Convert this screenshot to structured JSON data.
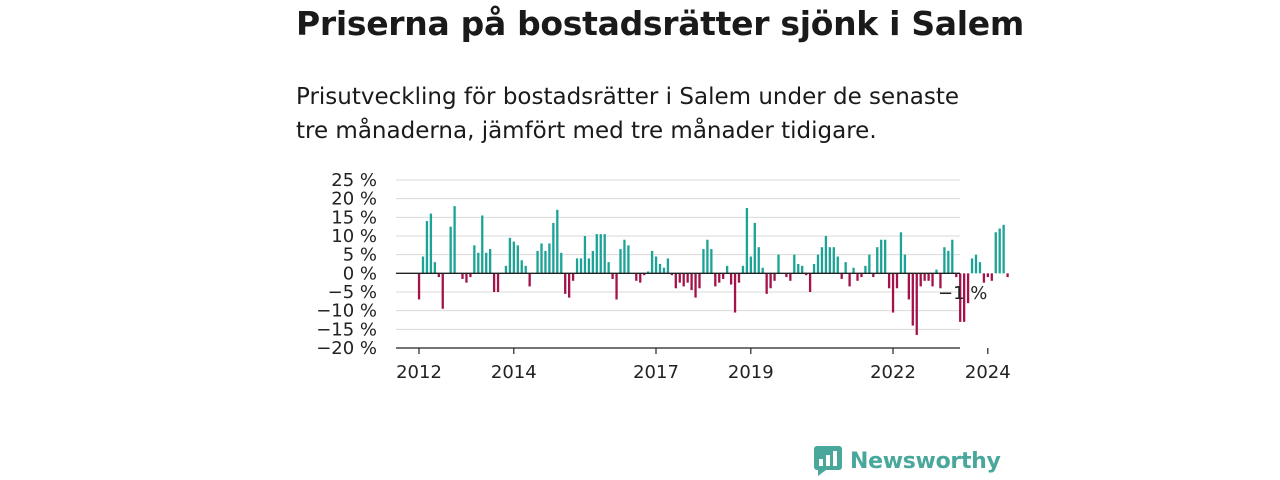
{
  "title": "Priserna på bostadsrätter sjönk i Salem",
  "subtitle": "Prisutveckling för bostadsrätter i Salem under de senaste tre månaderna, jämfört med tre månader tidigare.",
  "brand": "Newsworthy",
  "colors": {
    "positive": "#1aa396",
    "negative": "#a3124a",
    "brand": "#4aa79c"
  },
  "chart_data": {
    "type": "bar",
    "ylim": [
      -20,
      25
    ],
    "yticks": [
      25,
      20,
      15,
      10,
      5,
      0,
      -5,
      -10,
      -15,
      -20
    ],
    "ytick_labels": [
      "25 %",
      "20 %",
      "15 %",
      "10 %",
      "5 %",
      "0 %",
      "−5 %",
      "−10 %",
      "−15 %",
      "−20 %"
    ],
    "xtick_labels": [
      "2012",
      "2014",
      "2017",
      "2019",
      "2022",
      "2024"
    ],
    "xtick_months": [
      0,
      24,
      60,
      84,
      120,
      144
    ],
    "annotation": "−1 %",
    "x_start": "2012-01",
    "values": [
      -7,
      4.5,
      14,
      16,
      3,
      -1,
      -9.5,
      0,
      12.5,
      18,
      0,
      -1.5,
      -2.5,
      -1,
      7.5,
      5.5,
      15.5,
      5.5,
      6.5,
      -5,
      -5,
      0,
      2,
      9.5,
      8.5,
      7.5,
      3.5,
      2,
      -3.5,
      0,
      6,
      8,
      6,
      8,
      13.5,
      17,
      5.5,
      -5.5,
      -6.5,
      -2,
      4,
      4,
      10,
      4,
      6,
      10.5,
      10.5,
      10.5,
      3,
      -1.5,
      -7,
      6.5,
      9,
      7.5,
      0,
      -2,
      -2.5,
      -0.5,
      0.5,
      6,
      4.5,
      2.5,
      1.5,
      4,
      -0.5,
      -4,
      -2.5,
      -3.5,
      -2.5,
      -4.5,
      -6.5,
      -4,
      6.5,
      9,
      6.5,
      -3.5,
      -2.5,
      -1.5,
      2,
      -3,
      -10.5,
      -2.5,
      2,
      17.5,
      4.5,
      13.5,
      7,
      1.5,
      -5.5,
      -4,
      -2,
      5,
      0,
      -1,
      -2,
      5,
      2.5,
      2,
      -0.5,
      -5,
      2.5,
      5,
      7,
      10,
      7,
      7,
      4.5,
      -1.5,
      3,
      -3.5,
      1.5,
      -2,
      -1,
      2,
      5,
      -1,
      7,
      9,
      9,
      -4,
      -10.5,
      -4,
      11,
      5,
      -7,
      -14,
      -16.5,
      -3.5,
      -2,
      -2,
      -3.5,
      1,
      -4,
      7,
      6,
      9,
      -1,
      -13,
      -13,
      -8,
      4,
      5,
      3,
      -2.5,
      -1,
      -2,
      11,
      12,
      13,
      -1
    ]
  }
}
